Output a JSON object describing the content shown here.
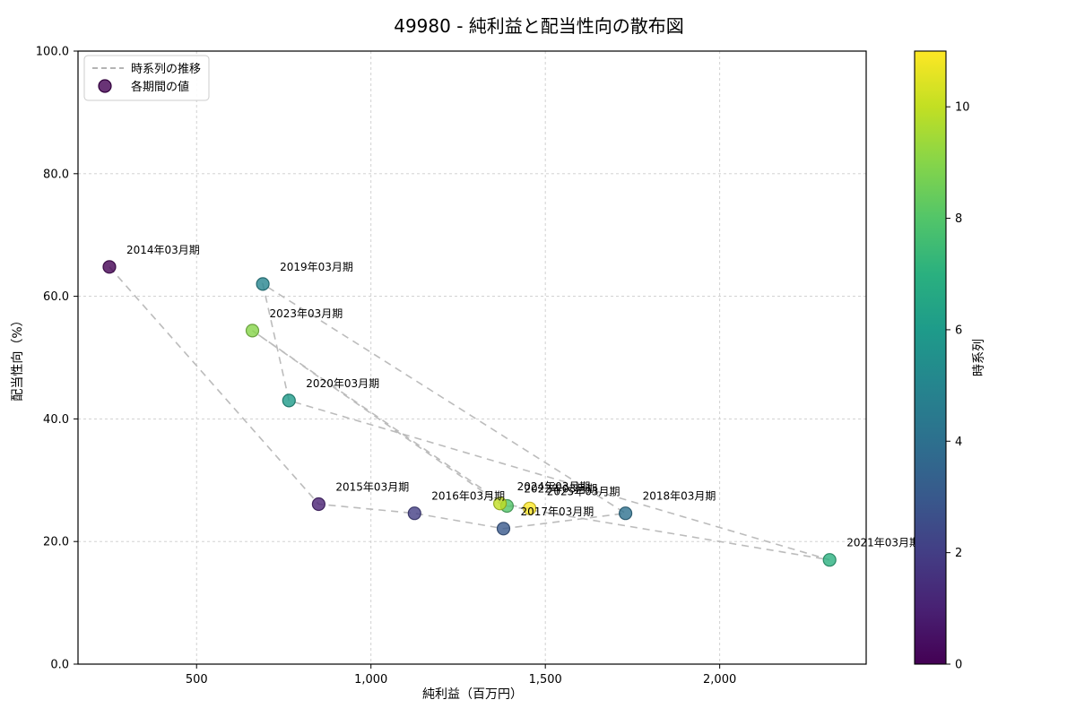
{
  "chart_data": {
    "type": "scatter",
    "title": "49980 - 純利益と配当性向の散布図",
    "xlabel": "純利益（百万円）",
    "ylabel": "配当性向（%）",
    "xlim": [
      160,
      2420
    ],
    "ylim": [
      0,
      100
    ],
    "grid": true,
    "xticks": {
      "values": [
        500,
        1000,
        1500,
        2000
      ],
      "labels": [
        "500",
        "1,000",
        "1,500",
        "2,000"
      ]
    },
    "yticks": {
      "values": [
        0,
        20,
        40,
        60,
        80,
        100
      ],
      "labels": [
        "0.0",
        "20.0",
        "40.0",
        "60.0",
        "80.0",
        "100.0"
      ]
    },
    "legend": {
      "position": "upper-left",
      "items": [
        {
          "label": "時系列の推移",
          "type": "dashed-line"
        },
        {
          "label": "各期間の値",
          "type": "dot"
        }
      ]
    },
    "points": [
      {
        "label": "2014年03月期",
        "x": 250,
        "y": 64.8,
        "t": 0
      },
      {
        "label": "2015年03月期",
        "x": 850,
        "y": 26.1,
        "t": 1
      },
      {
        "label": "2016年03月期",
        "x": 1125,
        "y": 24.6,
        "t": 2
      },
      {
        "label": "2017年03月期",
        "x": 1380,
        "y": 22.1,
        "t": 3
      },
      {
        "label": "2018年03月期",
        "x": 1730,
        "y": 24.6,
        "t": 4
      },
      {
        "label": "2019年03月期",
        "x": 690,
        "y": 62.0,
        "t": 5
      },
      {
        "label": "2020年03月期",
        "x": 765,
        "y": 43.0,
        "t": 6
      },
      {
        "label": "2021年03月期",
        "x": 2315,
        "y": 17.0,
        "t": 7
      },
      {
        "label": "2022年03月期",
        "x": 1390,
        "y": 25.8,
        "t": 8
      },
      {
        "label": "2023年03月期",
        "x": 660,
        "y": 54.4,
        "t": 9
      },
      {
        "label": "2024年03月期",
        "x": 1370,
        "y": 26.2,
        "t": 10
      },
      {
        "label": "2025年03月期",
        "x": 1455,
        "y": 25.4,
        "t": 11
      }
    ],
    "colorbar": {
      "label": "時系列",
      "vmin": 0,
      "vmax": 11,
      "ticks": [
        0,
        2,
        4,
        6,
        8,
        10
      ]
    },
    "colors": {
      "viridis12": [
        "#440154",
        "#482173",
        "#433e85",
        "#38598c",
        "#2d708e",
        "#25858e",
        "#1e9b8a",
        "#2ab07f",
        "#52c569",
        "#86d549",
        "#c2df23",
        "#fde725"
      ],
      "series_line": "#b8b8b8",
      "grid": "#cccccc",
      "spine": "#000000",
      "legend_border": "#cccccc",
      "annotation_text": "#1a1a1a",
      "marker_alpha": 0.8
    }
  }
}
